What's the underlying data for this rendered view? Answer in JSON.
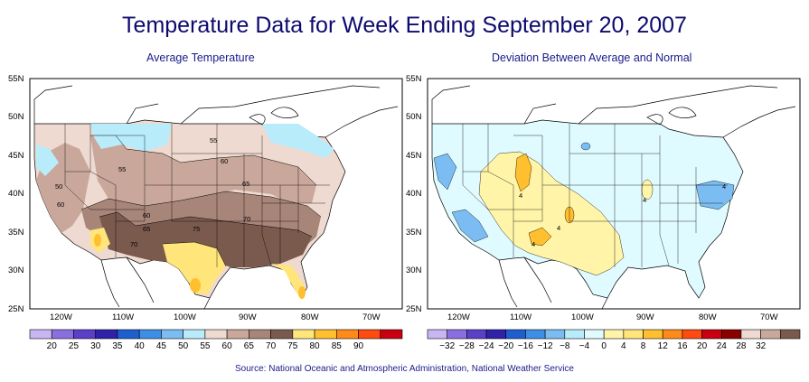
{
  "title": "Temperature Data for Week Ending September 20, 2007",
  "left_panel": {
    "subtitle": "Average Temperature",
    "lat_labels": [
      "55N",
      "50N",
      "45N",
      "40N",
      "35N",
      "30N",
      "25N"
    ],
    "lon_labels": [
      "120W",
      "110W",
      "100W",
      "90W",
      "80W",
      "70W"
    ],
    "contour_labels": [
      "55",
      "60",
      "55",
      "50",
      "60",
      "65",
      "60",
      "65",
      "70",
      "75",
      "70"
    ],
    "colorbar": {
      "labels": [
        "20",
        "25",
        "30",
        "35",
        "40",
        "45",
        "50",
        "55",
        "60",
        "65",
        "70",
        "75",
        "80",
        "85",
        "90"
      ],
      "colors": [
        "#c7b6f2",
        "#8a6fe0",
        "#5b3fc9",
        "#2f21a8",
        "#1e5fcf",
        "#3f8ee6",
        "#7bbdf2",
        "#b9ecfa",
        "#eedad0",
        "#c9a89b",
        "#a88579",
        "#7b5a4e",
        "#ffe57a",
        "#ffbf2e",
        "#ff8a1a",
        "#ff4a10",
        "#c80010"
      ]
    }
  },
  "right_panel": {
    "subtitle": "Deviation Between Average and Normal",
    "lat_labels": [
      "55N",
      "50N",
      "45N",
      "40N",
      "35N",
      "30N",
      "25N"
    ],
    "lon_labels": [
      "120W",
      "110W",
      "100W",
      "90W",
      "80W",
      "70W"
    ],
    "contour_labels": [
      "4",
      "4",
      "4",
      "4",
      "4"
    ],
    "colorbar": {
      "labels": [
        "−32",
        "−28",
        "−24",
        "−20",
        "−16",
        "−12",
        "−8",
        "−4",
        "0",
        "4",
        "8",
        "12",
        "16",
        "20",
        "24",
        "28",
        "32"
      ],
      "colors": [
        "#c7b6f2",
        "#8a6fe0",
        "#5b3fc9",
        "#2f21a8",
        "#1e5fcf",
        "#3f8ee6",
        "#7bbdf2",
        "#b9ecfa",
        "#e0fbff",
        "#fff4a8",
        "#ffe57a",
        "#ffbf2e",
        "#ff8a1a",
        "#ff4a10",
        "#c80010",
        "#8a0000",
        "#eedad0",
        "#c9a89b",
        "#7b5a4e"
      ]
    }
  },
  "source": "Source:  National Oceanic and Atmospheric Administration, National Weather Service"
}
